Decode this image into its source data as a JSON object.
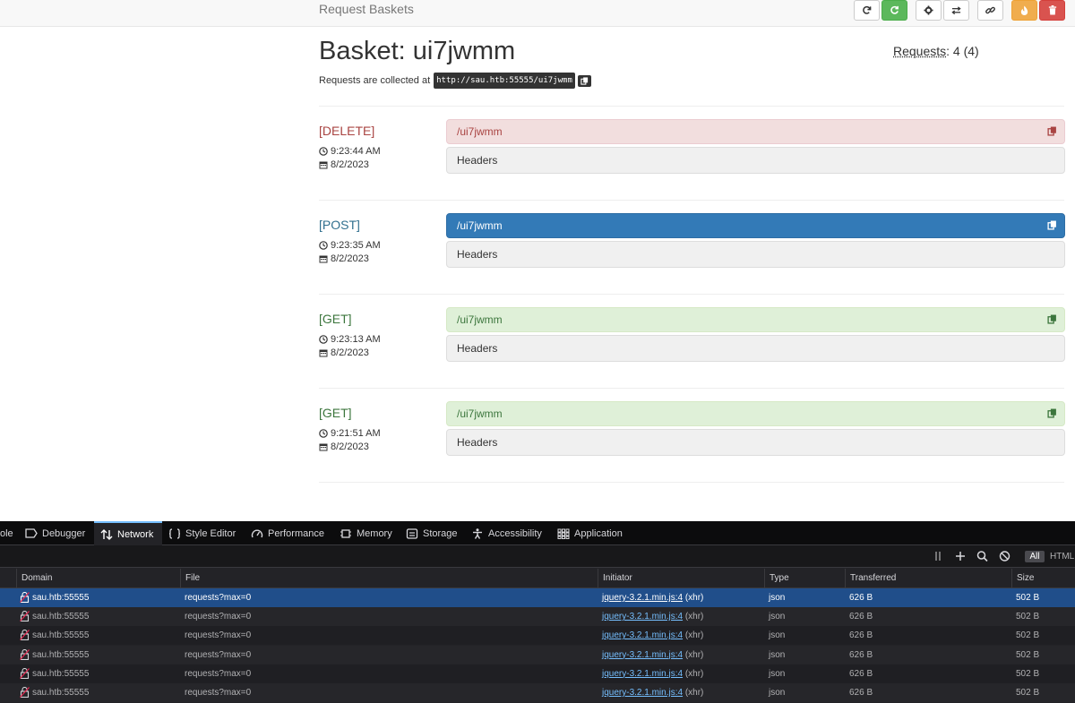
{
  "navbar": {
    "brand": "Request Baskets",
    "buttons": [
      {
        "icon": "refresh-icon"
      },
      {
        "icon": "auto-refresh-icon"
      },
      {
        "icon": "gear-icon"
      },
      {
        "icon": "swap-icon"
      },
      {
        "icon": "link-icon"
      },
      {
        "icon": "fire-icon"
      },
      {
        "icon": "trash-icon"
      }
    ]
  },
  "header": {
    "title": "Basket: ui7jwmm",
    "requests_label": "Requests",
    "requests_value": ": 4 (4)",
    "collected_prefix": "Requests are collected at",
    "collected_url": "http://sau.htb:55555/ui7jwmm"
  },
  "requests": [
    {
      "method": "[DELETE]",
      "time": "9:23:44 AM",
      "date": "8/2/2023",
      "path": "/ui7jwmm",
      "headers": "Headers"
    },
    {
      "method": "[POST]",
      "time": "9:23:35 AM",
      "date": "8/2/2023",
      "path": "/ui7jwmm",
      "headers": "Headers"
    },
    {
      "method": "[GET]",
      "time": "9:23:13 AM",
      "date": "8/2/2023",
      "path": "/ui7jwmm",
      "headers": "Headers"
    },
    {
      "method": "[GET]",
      "time": "9:21:51 AM",
      "date": "8/2/2023",
      "path": "/ui7jwmm",
      "headers": "Headers"
    }
  ],
  "devtools": {
    "tabs": [
      "ole",
      "Debugger",
      "Network",
      "Style Editor",
      "Performance",
      "Memory",
      "Storage",
      "Accessibility",
      "Application"
    ],
    "filter_all": "All",
    "filter_html": "HTML",
    "columns": [
      "Domain",
      "File",
      "Initiator",
      "Type",
      "Transferred",
      "Size"
    ],
    "rows": [
      {
        "domain": "sau.htb:55555",
        "file": "requests?max=0",
        "initiator": "jquery-3.2.1.min.js:4",
        "initiator_type": "(xhr)",
        "type": "json",
        "transferred": "626 B",
        "size": "502 B"
      },
      {
        "domain": "sau.htb:55555",
        "file": "requests?max=0",
        "initiator": "jquery-3.2.1.min.js:4",
        "initiator_type": "(xhr)",
        "type": "json",
        "transferred": "626 B",
        "size": "502 B"
      },
      {
        "domain": "sau.htb:55555",
        "file": "requests?max=0",
        "initiator": "jquery-3.2.1.min.js:4",
        "initiator_type": "(xhr)",
        "type": "json",
        "transferred": "626 B",
        "size": "502 B"
      },
      {
        "domain": "sau.htb:55555",
        "file": "requests?max=0",
        "initiator": "jquery-3.2.1.min.js:4",
        "initiator_type": "(xhr)",
        "type": "json",
        "transferred": "626 B",
        "size": "502 B"
      },
      {
        "domain": "sau.htb:55555",
        "file": "requests?max=0",
        "initiator": "jquery-3.2.1.min.js:4",
        "initiator_type": "(xhr)",
        "type": "json",
        "transferred": "626 B",
        "size": "502 B"
      },
      {
        "domain": "sau.htb:55555",
        "file": "requests?max=0",
        "initiator": "jquery-3.2.1.min.js:4",
        "initiator_type": "(xhr)",
        "type": "json",
        "transferred": "626 B",
        "size": "502 B"
      }
    ]
  }
}
